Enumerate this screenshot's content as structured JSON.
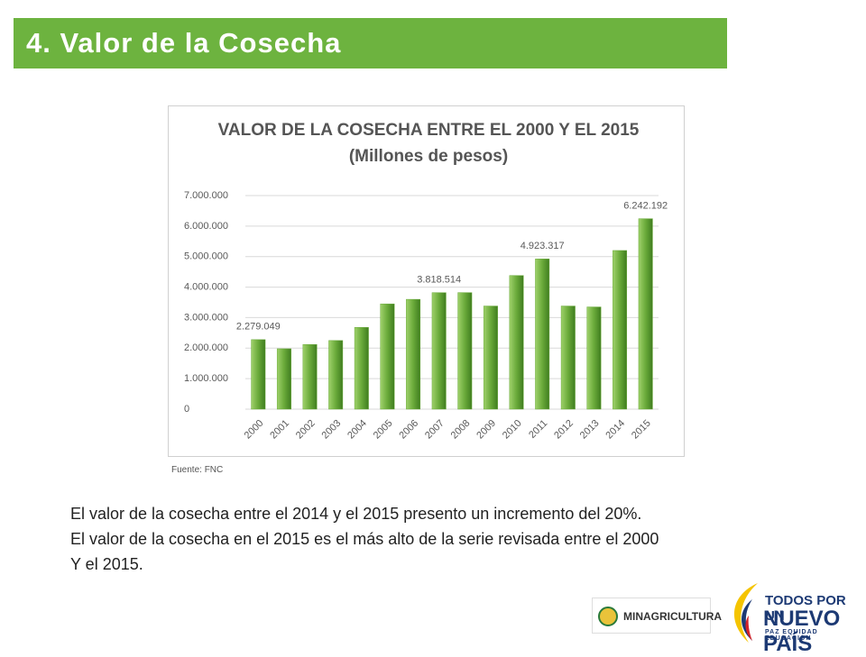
{
  "header": {
    "title": "4.  Valor de la Cosecha"
  },
  "chart_data": {
    "type": "bar",
    "title": "VALOR DE LA COSECHA ENTRE EL 2000 Y EL 2015 (Millones de pesos)",
    "categories": [
      "2000",
      "2001",
      "2002",
      "2003",
      "2004",
      "2005",
      "2006",
      "2007",
      "2008",
      "2009",
      "2010",
      "2011",
      "2012",
      "2013",
      "2014",
      "2015"
    ],
    "values": [
      2279049,
      1980000,
      2120000,
      2250000,
      2680000,
      3450000,
      3600000,
      3818514,
      3820000,
      3380000,
      4380000,
      4923317,
      3380000,
      3350000,
      5200000,
      6242192
    ],
    "value_labels": [
      "2.279.049",
      null,
      null,
      null,
      null,
      null,
      null,
      "3.818.514",
      null,
      null,
      null,
      "4.923.317",
      null,
      null,
      null,
      "6.242.192"
    ],
    "color": "#6aaa3a",
    "ylim": [
      0,
      7000000
    ],
    "yticks": [
      0,
      {
        "value": 1000000,
        "label": "1.000.000"
      },
      {
        "value": 2000000,
        "label": "2.000.000"
      },
      {
        "value": 3000000,
        "label": "3.000.000"
      },
      {
        "value": 4000000,
        "label": "4.000.000"
      },
      {
        "value": 5000000,
        "label": "5.000.000"
      },
      {
        "value": 6000000,
        "label": "6.000.000"
      },
      {
        "value": 7000000,
        "label": "7.000.000"
      }
    ],
    "grid": true
  },
  "source": "Fuente: FNC",
  "body": {
    "lines": [
      "El valor de la cosecha entre el 2014 y el 2015  presento un incremento del 20%.",
      "El valor de la cosecha en el 2015 es el más alto de la serie revisada entre el 2000",
      "Y el 2015."
    ]
  },
  "footer": {
    "ministry": "MINAGRICULTURA",
    "slogan_top": "TODOS POR UN",
    "slogan_main": "NUEVO PAÍS",
    "slogan_sub": "PAZ  EQUIDAD  EDUCACIÓN"
  }
}
